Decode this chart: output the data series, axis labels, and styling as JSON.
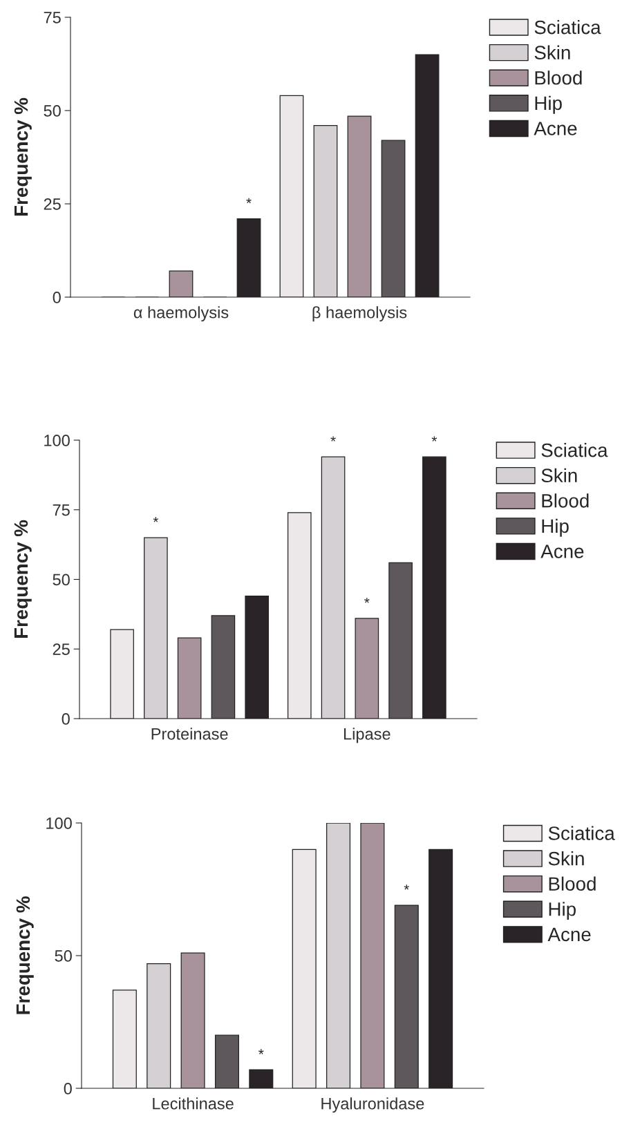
{
  "chart_data": [
    {
      "type": "bar",
      "ylabel": "Frequency %",
      "categories": [
        "α haemolysis",
        "β haemolysis"
      ],
      "series": [
        {
          "name": "Sciatica",
          "color": "#ece8ea",
          "values": [
            0,
            54
          ]
        },
        {
          "name": "Skin",
          "color": "#d4d0d3",
          "values": [
            0,
            46
          ]
        },
        {
          "name": "Blood",
          "color": "#a8939d",
          "values": [
            7,
            48.5
          ]
        },
        {
          "name": "Hip",
          "color": "#5e585c",
          "values": [
            0,
            42
          ]
        },
        {
          "name": "Acne",
          "color": "#2a2429",
          "values": [
            21,
            65
          ],
          "value_labels": [
            "*",
            null
          ]
        }
      ],
      "ylim": [
        0,
        75
      ],
      "yticks": [
        0,
        25,
        50,
        75
      ],
      "legend": "right",
      "grid": false
    },
    {
      "type": "bar",
      "ylabel": "Frequency %",
      "categories": [
        "Proteinase",
        "Lipase"
      ],
      "series": [
        {
          "name": "Sciatica",
          "color": "#ece8ea",
          "values": [
            32,
            74
          ]
        },
        {
          "name": "Skin",
          "color": "#d4d0d3",
          "values": [
            65,
            94
          ],
          "value_labels": [
            "*",
            "*"
          ]
        },
        {
          "name": "Blood",
          "color": "#a8939d",
          "values": [
            29,
            36
          ],
          "value_labels": [
            null,
            "*"
          ]
        },
        {
          "name": "Hip",
          "color": "#5e585c",
          "values": [
            37,
            56
          ]
        },
        {
          "name": "Acne",
          "color": "#2a2429",
          "values": [
            44,
            94
          ],
          "value_labels": [
            null,
            "*"
          ]
        }
      ],
      "ylim": [
        0,
        100
      ],
      "yticks": [
        0,
        25,
        50,
        75,
        100
      ],
      "legend": "right",
      "grid": false
    },
    {
      "type": "bar",
      "ylabel": "Frequency %",
      "categories": [
        "Lecithinase",
        "Hyaluronidase"
      ],
      "series": [
        {
          "name": "Sciatica",
          "color": "#ece8ea",
          "values": [
            37,
            90
          ]
        },
        {
          "name": "Skin",
          "color": "#d4d0d3",
          "values": [
            47,
            100
          ]
        },
        {
          "name": "Blood",
          "color": "#a8939d",
          "values": [
            51,
            100
          ]
        },
        {
          "name": "Hip",
          "color": "#5e585c",
          "values": [
            20,
            69
          ],
          "value_labels": [
            null,
            "*"
          ]
        },
        {
          "name": "Acne",
          "color": "#2a2429",
          "values": [
            7,
            90
          ],
          "value_labels": [
            "*",
            null
          ]
        }
      ],
      "ylim": [
        0,
        100
      ],
      "yticks": [
        0,
        50,
        100
      ],
      "legend": "right",
      "grid": false
    }
  ]
}
